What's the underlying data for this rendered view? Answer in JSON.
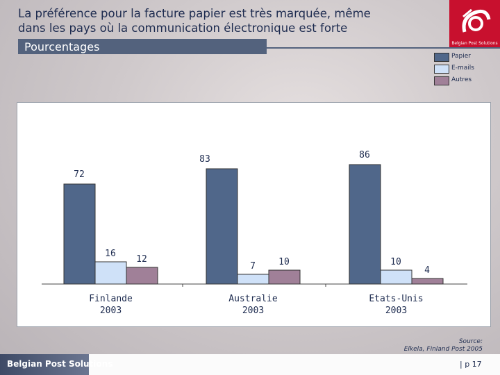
{
  "header": {
    "title_line1": "La préférence pour la facture papier est très marquée, même",
    "title_line2": "dans les pays où la communication électronique est forte",
    "subtitle": "Pourcentages"
  },
  "logo": {
    "text": "Belgian Post Solutions",
    "color": "#c8102e"
  },
  "chart_data": {
    "type": "bar",
    "categories": [
      [
        "Finlande",
        "2003"
      ],
      [
        "Australie",
        "2003"
      ],
      [
        "Etats-Unis",
        "2003"
      ]
    ],
    "series": [
      {
        "name": "Papier",
        "color": "#50678a",
        "values": [
          72,
          83,
          86
        ]
      },
      {
        "name": "E-mails",
        "color": "#cfe1f8",
        "values": [
          16,
          7,
          10
        ]
      },
      {
        "name": "Autres",
        "color": "#a08098",
        "values": [
          12,
          10,
          4
        ]
      }
    ],
    "ylim": [
      0,
      100
    ],
    "legend_position": "top-right",
    "grid": false
  },
  "source": {
    "label": "Source:",
    "text": "Elkela, Finland Post 2005"
  },
  "footer": {
    "brand": "Belgian Post Solutions",
    "page": "| p 17"
  }
}
